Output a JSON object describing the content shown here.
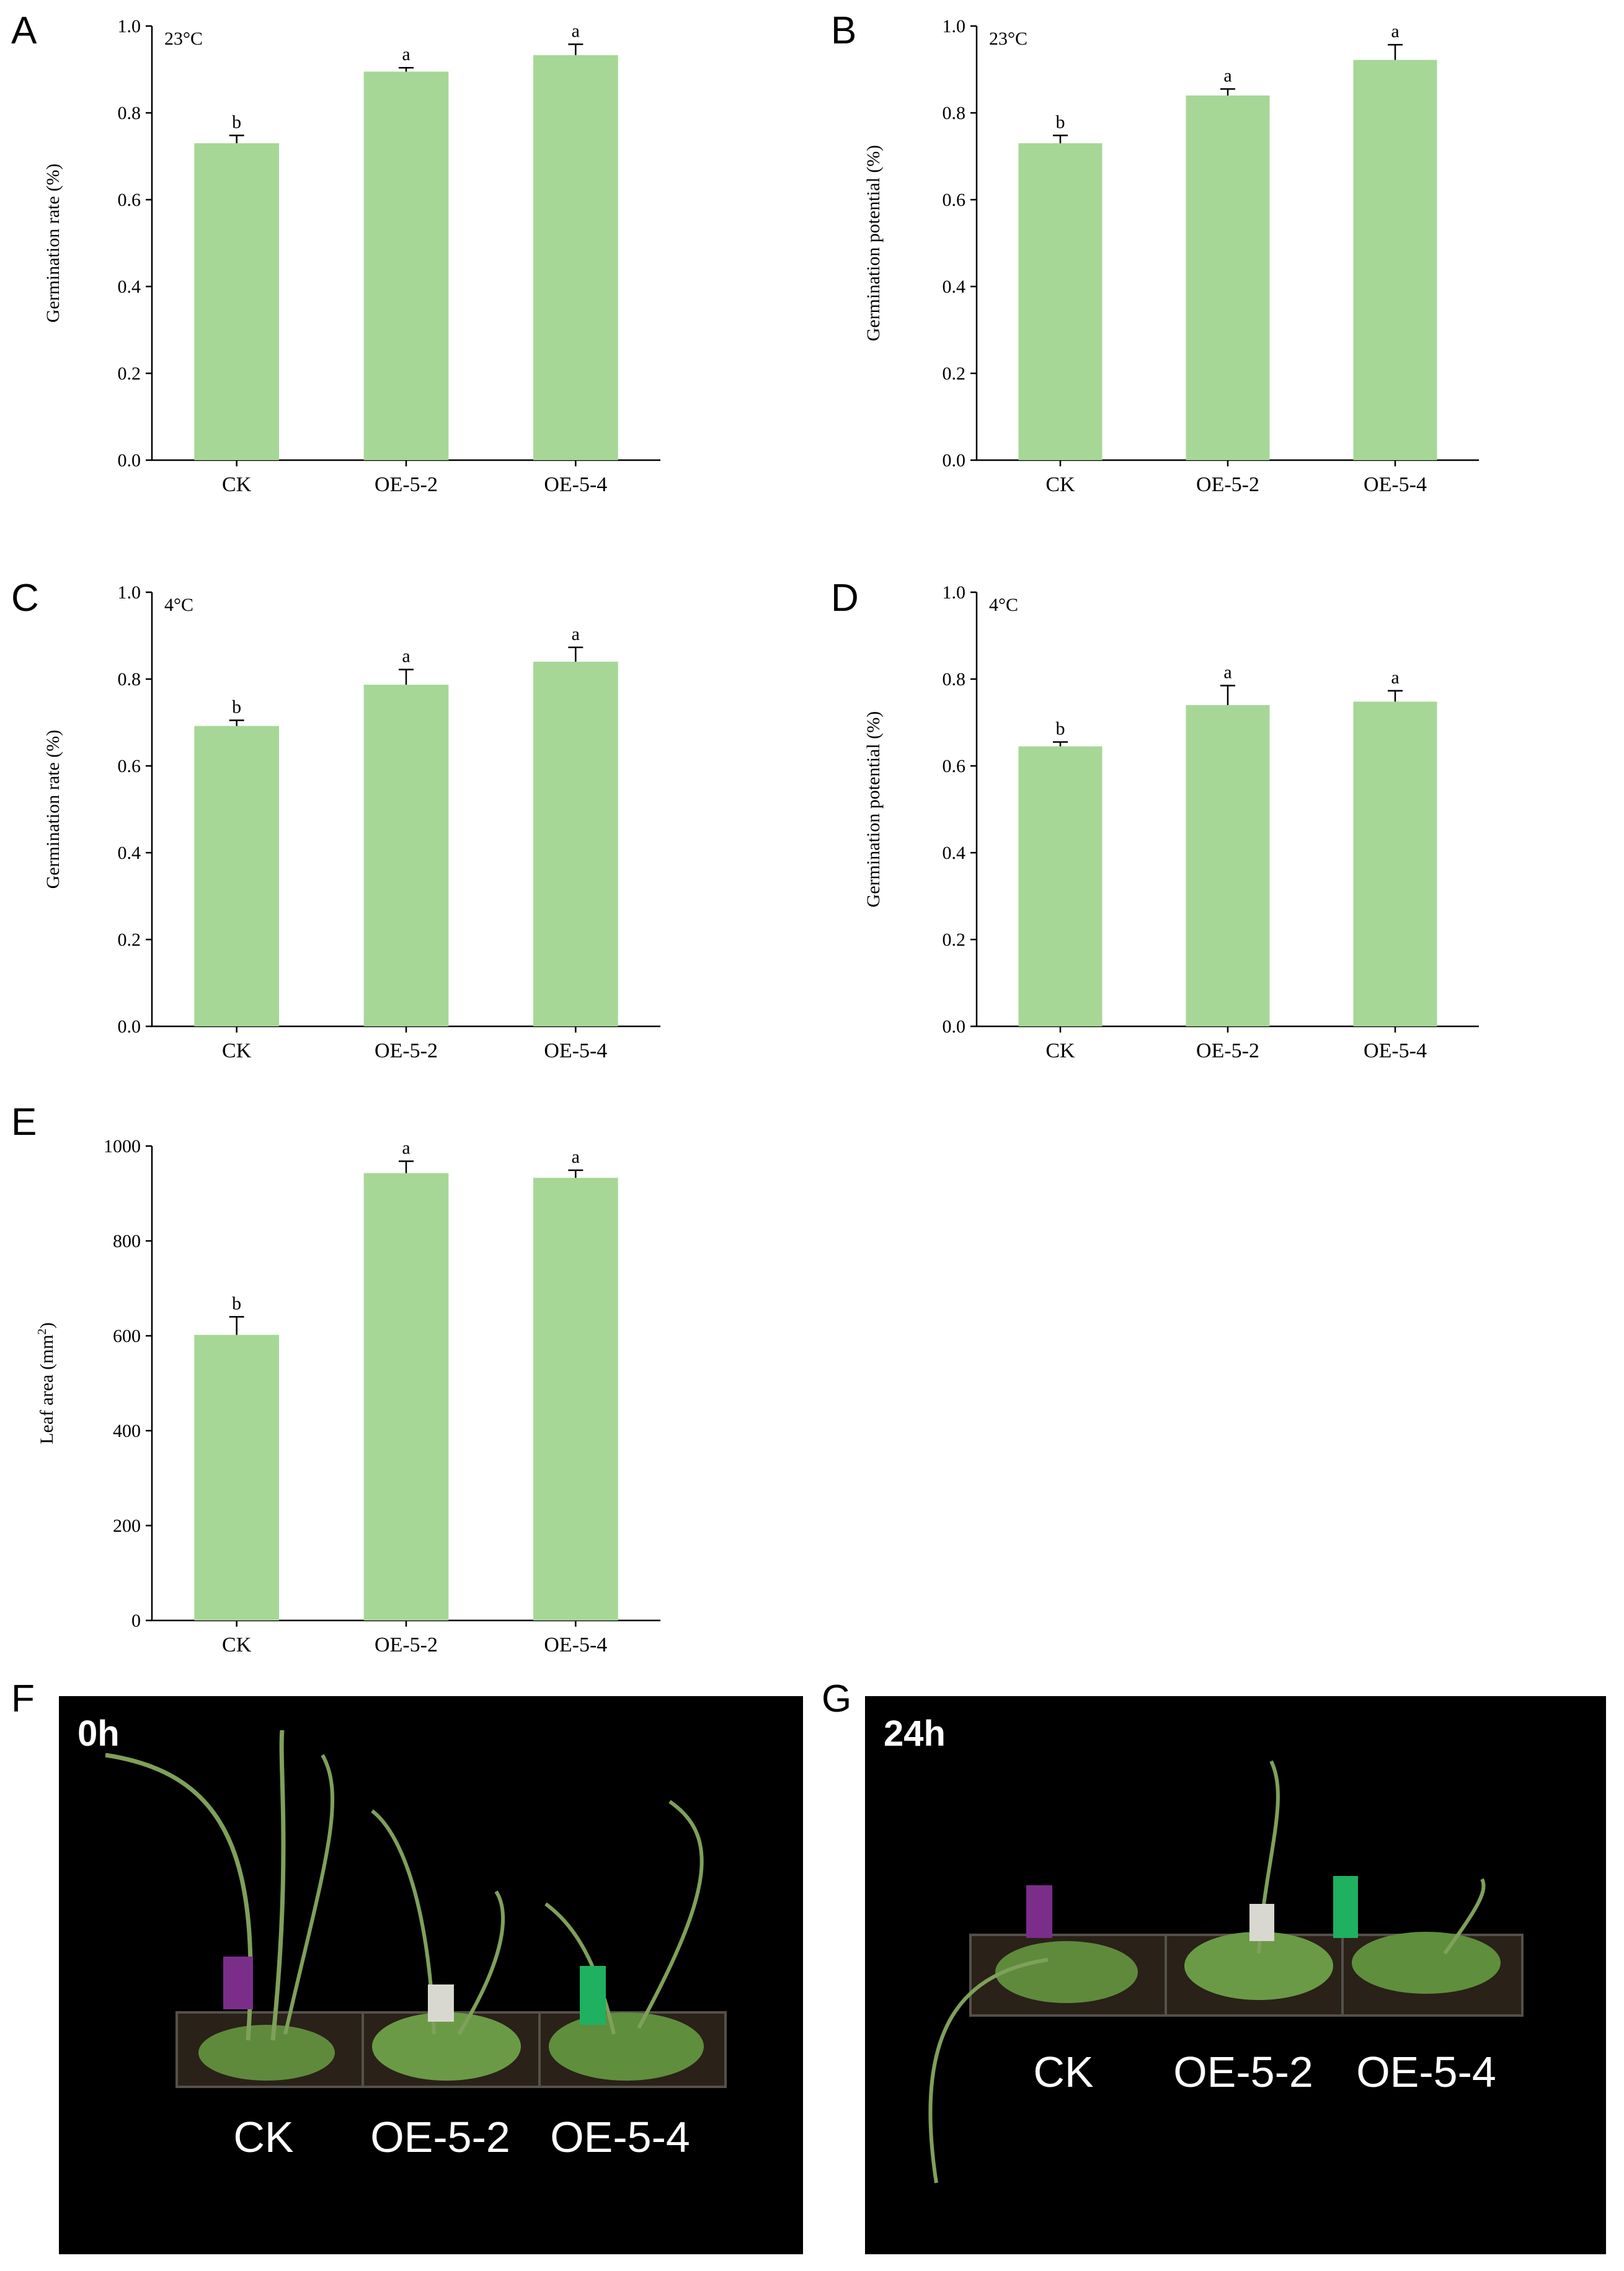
{
  "colors": {
    "bar": "#a6d796",
    "axis": "#000000",
    "photo_bg": "#000000"
  },
  "chart_data": [
    {
      "panel": "A",
      "type": "bar",
      "condition": "23°C",
      "ylabel": "Germination rate (%)",
      "ylim": [
        0,
        1.0
      ],
      "yticks": [
        "0.0",
        "0.2",
        "0.4",
        "0.6",
        "0.8",
        "1.0"
      ],
      "categories": [
        "CK",
        "OE-5-2",
        "OE-5-4"
      ],
      "values": [
        0.73,
        0.895,
        0.933
      ],
      "errors": [
        0.018,
        0.009,
        0.025
      ],
      "significance": [
        "b",
        "a",
        "a"
      ]
    },
    {
      "panel": "B",
      "type": "bar",
      "condition": "23°C",
      "ylabel": "Germination potential (%)",
      "ylim": [
        0,
        1.0
      ],
      "yticks": [
        "0.0",
        "0.2",
        "0.4",
        "0.6",
        "0.8",
        "1.0"
      ],
      "categories": [
        "CK",
        "OE-5-2",
        "OE-5-4"
      ],
      "values": [
        0.73,
        0.84,
        0.922
      ],
      "errors": [
        0.018,
        0.015,
        0.035
      ],
      "significance": [
        "b",
        "a",
        "a"
      ]
    },
    {
      "panel": "C",
      "type": "bar",
      "condition": "4°C",
      "ylabel": "Germination rate (%)",
      "ylim": [
        0,
        1.0
      ],
      "yticks": [
        "0.0",
        "0.2",
        "0.4",
        "0.6",
        "0.8",
        "1.0"
      ],
      "categories": [
        "CK",
        "OE-5-2",
        "OE-5-4"
      ],
      "values": [
        0.692,
        0.787,
        0.84
      ],
      "errors": [
        0.013,
        0.035,
        0.033
      ],
      "significance": [
        "b",
        "a",
        "a"
      ]
    },
    {
      "panel": "D",
      "type": "bar",
      "condition": "4°C",
      "ylabel": "Germination potential (%)",
      "ylim": [
        0,
        1.0
      ],
      "yticks": [
        "0.0",
        "0.2",
        "0.4",
        "0.6",
        "0.8",
        "1.0"
      ],
      "categories": [
        "CK",
        "OE-5-2",
        "OE-5-4"
      ],
      "values": [
        0.645,
        0.74,
        0.748
      ],
      "errors": [
        0.01,
        0.045,
        0.025
      ],
      "significance": [
        "b",
        "a",
        "a"
      ]
    },
    {
      "panel": "E",
      "type": "bar",
      "condition": "",
      "ylabel": "Leaf area (mm",
      "ylabel_sup": "2",
      "ylabel_end": ")",
      "ylim": [
        0,
        1000
      ],
      "yticks": [
        "0",
        "200",
        "400",
        "600",
        "800",
        "1000"
      ],
      "categories": [
        "CK",
        "OE-5-2",
        "OE-5-4"
      ],
      "values": [
        602,
        943,
        933
      ],
      "errors": [
        38,
        25,
        16
      ],
      "significance": [
        "b",
        "a",
        "a"
      ]
    }
  ],
  "photos": [
    {
      "panel": "F",
      "time": "0h",
      "labels": [
        "CK",
        "OE-5-2",
        "OE-5-4"
      ]
    },
    {
      "panel": "G",
      "time": "24h",
      "labels": [
        "CK",
        "OE-5-2",
        "OE-5-4"
      ]
    }
  ]
}
